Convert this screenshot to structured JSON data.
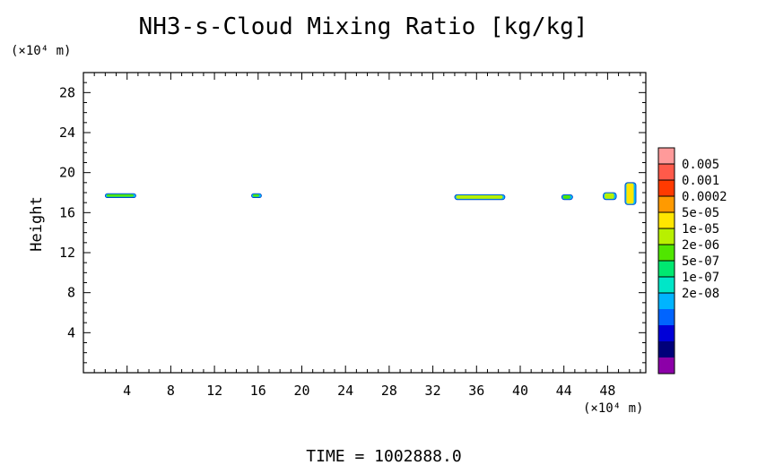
{
  "chart_data": {
    "type": "heatmap",
    "title": "NH3-s-Cloud Mixing Ratio [kg/kg]",
    "ylabel": "Height",
    "y_unit": "(×10⁴ m)",
    "x_unit": "(×10⁴ m)",
    "footer": "TIME = 1002888.0",
    "xlim": [
      0,
      51.5
    ],
    "ylim": [
      0,
      30
    ],
    "x_ticks": [
      4,
      8,
      12,
      16,
      20,
      24,
      28,
      32,
      36,
      40,
      44,
      48
    ],
    "y_ticks": [
      4,
      8,
      12,
      16,
      20,
      24,
      28
    ],
    "x_minor_step": 1,
    "y_minor_step": 1,
    "colorbar": {
      "levels": [
        "0.005",
        "0.001",
        "0.0002",
        "5e-05",
        "1e-05",
        "2e-06",
        "5e-07",
        "1e-07",
        "2e-08"
      ],
      "colors": [
        "#ff9a9a",
        "#ff5a4a",
        "#ff3a00",
        "#ff9a00",
        "#ffe600",
        "#b8f000",
        "#50e600",
        "#00e870",
        "#00e6c8",
        "#00b4ff",
        "#0064ff",
        "#0000d8",
        "#00007a",
        "#8c00a8"
      ]
    },
    "cloud_patches": [
      {
        "x": [
          2.0,
          4.8
        ],
        "y": [
          17.5,
          17.9
        ],
        "level": "2e-06"
      },
      {
        "x": [
          15.4,
          16.3
        ],
        "y": [
          17.5,
          17.9
        ],
        "level": "2e-06"
      },
      {
        "x": [
          34.0,
          38.6
        ],
        "y": [
          17.3,
          17.8
        ],
        "level": "1e-05"
      },
      {
        "x": [
          43.8,
          44.8
        ],
        "y": [
          17.3,
          17.8
        ],
        "level": "2e-06"
      },
      {
        "x": [
          47.6,
          48.8
        ],
        "y": [
          17.3,
          18.0
        ],
        "level": "1e-05"
      },
      {
        "x": [
          49.6,
          50.6
        ],
        "y": [
          16.8,
          19.0
        ],
        "level": "5e-05"
      }
    ]
  }
}
